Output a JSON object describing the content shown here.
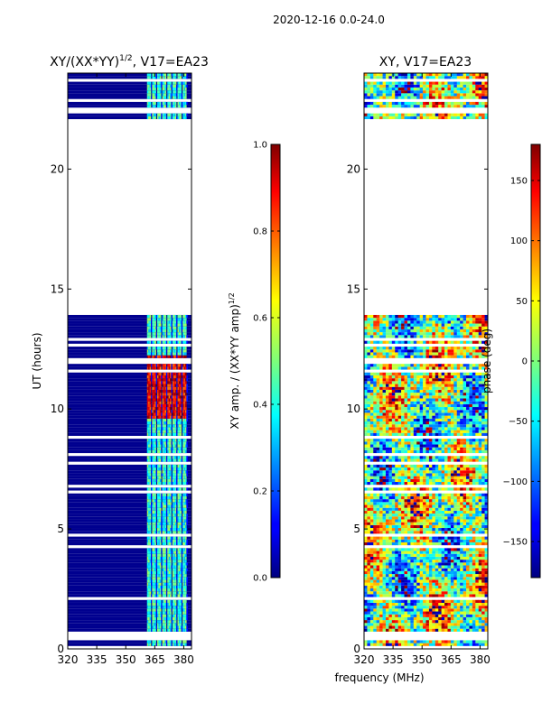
{
  "suptitle": "2020-12-16 0.0-24.0",
  "shared_xlabel": "frequency (MHz)",
  "colors": {
    "background_fill": "#00008f",
    "no_data": "#ffffff"
  },
  "chart_data": [
    {
      "type": "heatmap",
      "panel": "left",
      "title_main": "XY/(XX*YY)",
      "title_sup": "1/2",
      "title_tail": ", V17=EA23",
      "xlabel": "",
      "ylabel": "UT (hours)",
      "xlim": [
        320,
        384
      ],
      "ylim": [
        0,
        24
      ],
      "x_ticks": [
        320,
        335,
        350,
        365,
        380
      ],
      "y_ticks": [
        0,
        5,
        10,
        15,
        20
      ],
      "data_gap_hours": [
        13.9,
        22.0
      ],
      "bright_channel_band_mhz": [
        361,
        382
      ],
      "peak_amplitude_hours": [
        9.5,
        12.2
      ],
      "colorbar": {
        "label_main": "XY amp. / (XX*YY amp)",
        "label_sup": "1/2",
        "colormap": "jet",
        "range": [
          0.0,
          1.0
        ],
        "ticks": [
          "0.0",
          "0.2",
          "0.4",
          "0.6",
          "0.8",
          "1.0"
        ]
      }
    },
    {
      "type": "heatmap",
      "panel": "right",
      "title_main": "XY, V17=EA23",
      "xlabel": "",
      "ylabel": "",
      "xlim": [
        320,
        384
      ],
      "ylim": [
        0,
        24
      ],
      "x_ticks": [
        320,
        335,
        350,
        365,
        380
      ],
      "y_ticks": [
        0,
        5,
        10,
        15,
        20
      ],
      "data_gap_hours": [
        13.9,
        22.0
      ],
      "colorbar": {
        "label": "phase (deg)",
        "colormap": "jet",
        "range": [
          -180,
          180
        ],
        "ticks": [
          "−150",
          "−100",
          "−50",
          "0",
          "50",
          "100",
          "150"
        ]
      }
    }
  ]
}
